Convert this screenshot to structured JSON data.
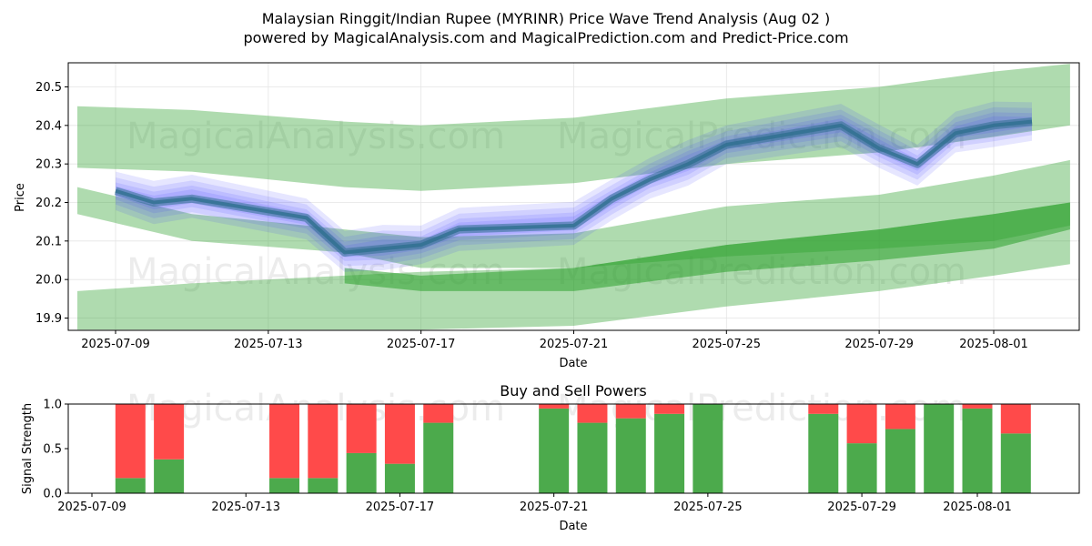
{
  "title_line1": "Malaysian Ringgit/Indian Rupee (MYRINR) Price Wave Trend Analysis (Aug 02 )",
  "title_line2": "powered by MagicalAnalysis.com and MagicalPrediction.com and Predict-Price.com",
  "watermarks": [
    "MagicalAnalysis.com",
    "MagicalPrediction.com"
  ],
  "colors": {
    "band_green": "#2ca02c",
    "band_blue": "#3b3bff",
    "price_line": "#2f6f8f",
    "buy": "#4caa4c",
    "sell": "#ff4a4a"
  },
  "chart_data": [
    {
      "type": "line",
      "title": "",
      "xlabel": "Date",
      "ylabel": "Price",
      "x_ticks": [
        "2025-07-09",
        "2025-07-13",
        "2025-07-17",
        "2025-07-21",
        "2025-07-25",
        "2025-07-29",
        "2025-08-01"
      ],
      "y_ticks": [
        "19.9",
        "20.0",
        "20.1",
        "20.2",
        "20.3",
        "20.4",
        "20.5"
      ],
      "xlim": [
        "2025-07-07",
        "2025-08-04"
      ],
      "ylim": [
        19.87,
        20.56
      ],
      "grid": true,
      "price_series": {
        "name": "",
        "x": [
          "2025-07-09",
          "2025-07-10",
          "2025-07-11",
          "2025-07-14",
          "2025-07-15",
          "2025-07-16",
          "2025-07-17",
          "2025-07-18",
          "2025-07-21",
          "2025-07-22",
          "2025-07-23",
          "2025-07-24",
          "2025-07-25",
          "2025-07-28",
          "2025-07-29",
          "2025-07-30",
          "2025-07-31",
          "2025-08-01",
          "2025-08-02"
        ],
        "y": [
          20.23,
          20.2,
          20.21,
          20.16,
          20.07,
          20.08,
          20.09,
          20.13,
          20.14,
          20.21,
          20.26,
          20.3,
          20.35,
          20.4,
          20.34,
          20.3,
          20.38,
          20.4,
          20.41
        ]
      },
      "bands": [
        {
          "x": [
            "2025-07-08",
            "2025-07-11",
            "2025-07-15",
            "2025-07-17",
            "2025-07-21",
            "2025-07-25",
            "2025-07-29",
            "2025-08-01",
            "2025-08-03"
          ],
          "upper": [
            20.45,
            20.44,
            20.41,
            20.4,
            20.42,
            20.47,
            20.5,
            20.54,
            20.56
          ],
          "lower": [
            20.29,
            20.28,
            20.24,
            20.23,
            20.25,
            20.3,
            20.33,
            20.37,
            20.4
          ]
        },
        {
          "x": [
            "2025-07-08",
            "2025-07-11",
            "2025-07-15",
            "2025-07-17",
            "2025-07-21",
            "2025-07-25",
            "2025-07-29",
            "2025-08-01",
            "2025-08-03"
          ],
          "upper": [
            20.24,
            20.17,
            20.13,
            20.11,
            20.12,
            20.19,
            20.22,
            20.27,
            20.31
          ],
          "lower": [
            20.17,
            20.1,
            20.07,
            20.03,
            20.03,
            20.06,
            20.08,
            20.1,
            20.14
          ]
        },
        {
          "x": [
            "2025-07-08",
            "2025-07-11",
            "2025-07-15",
            "2025-07-17",
            "2025-07-21",
            "2025-07-25",
            "2025-07-29",
            "2025-08-01",
            "2025-08-03"
          ],
          "upper": [
            19.97,
            19.99,
            20.01,
            20.02,
            20.03,
            20.09,
            20.13,
            20.17,
            20.2
          ],
          "lower": [
            19.87,
            19.87,
            19.87,
            19.87,
            19.88,
            19.93,
            19.97,
            20.01,
            20.04
          ]
        },
        {
          "x": [
            "2025-07-15",
            "2025-07-17",
            "2025-07-21",
            "2025-07-25",
            "2025-07-29",
            "2025-08-01",
            "2025-08-03"
          ],
          "upper": [
            20.03,
            20.01,
            20.03,
            20.09,
            20.13,
            20.17,
            20.2
          ],
          "lower": [
            19.99,
            19.97,
            19.97,
            20.02,
            20.05,
            20.08,
            20.13
          ]
        }
      ]
    },
    {
      "type": "bar",
      "title": "Buy and Sell Powers",
      "xlabel": "Date",
      "ylabel": "Signal Strength",
      "x_ticks": [
        "2025-07-09",
        "2025-07-13",
        "2025-07-17",
        "2025-07-21",
        "2025-07-25",
        "2025-07-29",
        "2025-08-01"
      ],
      "y_ticks": [
        "0.0",
        "0.5",
        "1.0"
      ],
      "ylim": [
        0,
        1
      ],
      "categories": [
        "2025-07-10",
        "2025-07-11",
        "2025-07-14",
        "2025-07-15",
        "2025-07-16",
        "2025-07-17",
        "2025-07-18",
        "2025-07-21",
        "2025-07-22",
        "2025-07-23",
        "2025-07-24",
        "2025-07-25",
        "2025-07-28",
        "2025-07-29",
        "2025-07-30",
        "2025-07-31",
        "2025-08-01",
        "2025-08-02"
      ],
      "series": [
        {
          "name": "",
          "values": [
            0.17,
            0.38,
            0.17,
            0.17,
            0.45,
            0.33,
            0.79,
            0.95,
            0.79,
            0.84,
            0.89,
            1.0,
            0.89,
            0.56,
            0.72,
            1.0,
            0.95,
            0.67
          ]
        },
        {
          "name": "",
          "values": [
            0.83,
            0.62,
            0.83,
            0.83,
            0.55,
            0.67,
            0.21,
            0.05,
            0.21,
            0.16,
            0.11,
            0.0,
            0.11,
            0.44,
            0.28,
            0.0,
            0.05,
            0.33
          ]
        }
      ]
    }
  ]
}
